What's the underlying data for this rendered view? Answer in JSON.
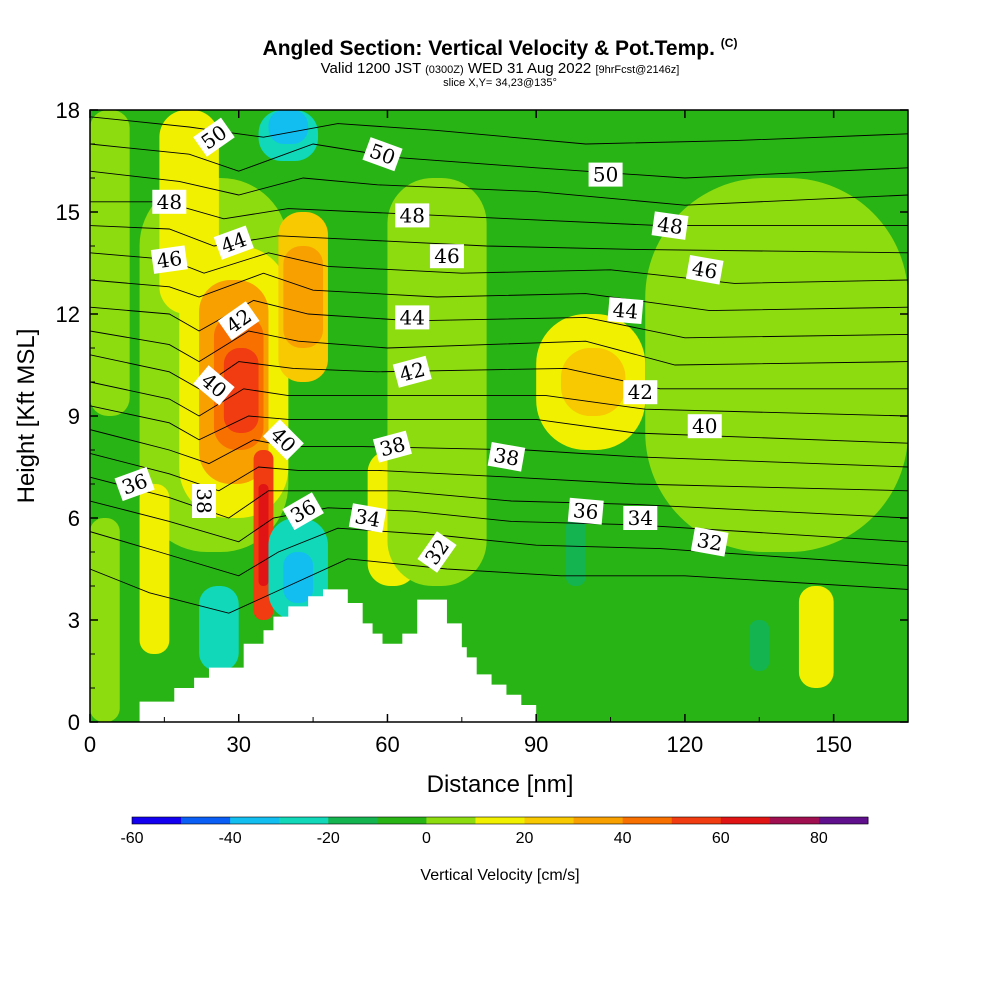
{
  "header": {
    "title": "Angled Section: Vertical Velocity & Pot.Temp.",
    "copyright": "(C)",
    "valid_a": "Valid 1200 JST",
    "valid_utc": "(0300Z)",
    "valid_b": "WED 31 Aug 2022",
    "forecast": "[9hrFcst@2146z]",
    "slice": "slice X,Y= 34,23@135°"
  },
  "chart_data": {
    "type": "contour-section",
    "title": "Angled Section: Vertical Velocity & Pot.Temp.",
    "xlabel": "Distance [nm]",
    "ylabel": "Height [Kft MSL]",
    "xlim": [
      0,
      165
    ],
    "ylim": [
      0,
      18
    ],
    "xticks": [
      "0",
      "30",
      "60",
      "90",
      "120",
      "150"
    ],
    "xtick_values": [
      0,
      30,
      60,
      90,
      120,
      150
    ],
    "yticks": [
      "0",
      "3",
      "6",
      "9",
      "12",
      "15",
      "18"
    ],
    "ytick_values": [
      0,
      3,
      6,
      9,
      12,
      15,
      18
    ],
    "terrain": [
      [
        10,
        0.6
      ],
      [
        16,
        0.6
      ],
      [
        17,
        1
      ],
      [
        20,
        1
      ],
      [
        21,
        1.3
      ],
      [
        23,
        1.3
      ],
      [
        24,
        1.6
      ],
      [
        30,
        1.6
      ],
      [
        31,
        2.3
      ],
      [
        34,
        2.3
      ],
      [
        35,
        2.7
      ],
      [
        36,
        2.7
      ],
      [
        37,
        3.1
      ],
      [
        39,
        3.1
      ],
      [
        40,
        3.4
      ],
      [
        43,
        3.4
      ],
      [
        44,
        3.7
      ],
      [
        46,
        3.7
      ],
      [
        47,
        3.9
      ],
      [
        51,
        3.9
      ],
      [
        52,
        3.5
      ],
      [
        54,
        3.5
      ],
      [
        55,
        2.9
      ],
      [
        56,
        2.9
      ],
      [
        57,
        2.6
      ],
      [
        58,
        2.6
      ],
      [
        59,
        2.3
      ],
      [
        62,
        2.3
      ],
      [
        63,
        2.6
      ],
      [
        65,
        2.6
      ],
      [
        66,
        3.6
      ],
      [
        71,
        3.6
      ],
      [
        72,
        2.9
      ],
      [
        74,
        2.9
      ],
      [
        75,
        2.2
      ],
      [
        76,
        1.9
      ],
      [
        77,
        1.9
      ],
      [
        78,
        1.4
      ],
      [
        80,
        1.4
      ],
      [
        81,
        1.1
      ],
      [
        83,
        1.1
      ],
      [
        84,
        0.8
      ],
      [
        86,
        0.8
      ],
      [
        87,
        0.5
      ],
      [
        89,
        0.5
      ],
      [
        90,
        0.3
      ]
    ],
    "velocity_cells": [
      {
        "x": [
          0,
          165
        ],
        "y": [
          0,
          18
        ],
        "level": "0"
      },
      {
        "x": [
          0,
          8
        ],
        "y": [
          9,
          18
        ],
        "level": "10"
      },
      {
        "x": [
          0,
          6
        ],
        "y": [
          0,
          6
        ],
        "level": "10"
      },
      {
        "x": [
          10,
          40
        ],
        "y": [
          5,
          16
        ],
        "level": "10"
      },
      {
        "x": [
          14,
          26
        ],
        "y": [
          12,
          18
        ],
        "level": "20"
      },
      {
        "x": [
          18,
          40
        ],
        "y": [
          6,
          14
        ],
        "level": "20"
      },
      {
        "x": [
          22,
          36
        ],
        "y": [
          7,
          13
        ],
        "level": "40"
      },
      {
        "x": [
          25,
          35
        ],
        "y": [
          8,
          12
        ],
        "level": "50"
      },
      {
        "x": [
          27,
          34
        ],
        "y": [
          8.5,
          11
        ],
        "level": "60"
      },
      {
        "x": [
          33,
          37
        ],
        "y": [
          3,
          8
        ],
        "level": "60"
      },
      {
        "x": [
          34,
          36
        ],
        "y": [
          4,
          7
        ],
        "level": "70"
      },
      {
        "x": [
          38,
          48
        ],
        "y": [
          10,
          15
        ],
        "level": "30"
      },
      {
        "x": [
          39,
          47
        ],
        "y": [
          11,
          14
        ],
        "level": "40"
      },
      {
        "x": [
          10,
          16
        ],
        "y": [
          2,
          7
        ],
        "level": "20"
      },
      {
        "x": [
          22,
          30
        ],
        "y": [
          1.5,
          4
        ],
        "level": "-20"
      },
      {
        "x": [
          36,
          48
        ],
        "y": [
          3,
          6
        ],
        "level": "-20"
      },
      {
        "x": [
          39,
          45
        ],
        "y": [
          3.5,
          5
        ],
        "level": "-30"
      },
      {
        "x": [
          34,
          46
        ],
        "y": [
          16.5,
          18
        ],
        "level": "-20"
      },
      {
        "x": [
          36,
          44
        ],
        "y": [
          17,
          18
        ],
        "level": "-30"
      },
      {
        "x": [
          56,
          66
        ],
        "y": [
          4,
          8
        ],
        "level": "20"
      },
      {
        "x": [
          90,
          112
        ],
        "y": [
          8,
          12
        ],
        "level": "20"
      },
      {
        "x": [
          95,
          108
        ],
        "y": [
          9,
          11
        ],
        "level": "30"
      },
      {
        "x": [
          143,
          150
        ],
        "y": [
          1,
          4
        ],
        "level": "20"
      },
      {
        "x": [
          96,
          100
        ],
        "y": [
          4,
          6
        ],
        "level": "-10"
      },
      {
        "x": [
          133,
          137
        ],
        "y": [
          1.5,
          3
        ],
        "level": "-10"
      },
      {
        "x": [
          112,
          165
        ],
        "y": [
          5,
          16
        ],
        "level": "10"
      },
      {
        "x": [
          60,
          80
        ],
        "y": [
          4,
          16
        ],
        "level": "10"
      }
    ],
    "theta_contour_labels": [
      {
        "value": "50",
        "x": 25,
        "y": 17.2,
        "rotate": -35
      },
      {
        "value": "50",
        "x": 59,
        "y": 16.7,
        "rotate": 20
      },
      {
        "value": "50",
        "x": 104,
        "y": 16.1,
        "rotate": 0
      },
      {
        "value": "48",
        "x": 16,
        "y": 15.3,
        "rotate": 0
      },
      {
        "value": "48",
        "x": 65,
        "y": 14.9,
        "rotate": 0
      },
      {
        "value": "48",
        "x": 117,
        "y": 14.6,
        "rotate": 8
      },
      {
        "value": "46",
        "x": 16,
        "y": 13.6,
        "rotate": -8
      },
      {
        "value": "46",
        "x": 72,
        "y": 13.7,
        "rotate": 0
      },
      {
        "value": "46",
        "x": 124,
        "y": 13.3,
        "rotate": 10
      },
      {
        "value": "44",
        "x": 29,
        "y": 14.1,
        "rotate": -20
      },
      {
        "value": "44",
        "x": 65,
        "y": 11.9,
        "rotate": 0
      },
      {
        "value": "44",
        "x": 108,
        "y": 12.1,
        "rotate": 5
      },
      {
        "value": "42",
        "x": 30,
        "y": 11.8,
        "rotate": -35
      },
      {
        "value": "42",
        "x": 65,
        "y": 10.3,
        "rotate": -15
      },
      {
        "value": "42",
        "x": 111,
        "y": 9.7,
        "rotate": 0
      },
      {
        "value": "40",
        "x": 25,
        "y": 9.9,
        "rotate": 40
      },
      {
        "value": "40",
        "x": 39,
        "y": 8.3,
        "rotate": 45
      },
      {
        "value": "40",
        "x": 124,
        "y": 8.7,
        "rotate": 0
      },
      {
        "value": "38",
        "x": 61,
        "y": 8.1,
        "rotate": -15
      },
      {
        "value": "38",
        "x": 84,
        "y": 7.8,
        "rotate": 10
      },
      {
        "value": "38",
        "x": 23,
        "y": 6.5,
        "rotate": 90
      },
      {
        "value": "36",
        "x": 9,
        "y": 7.0,
        "rotate": -20
      },
      {
        "value": "36",
        "x": 43,
        "y": 6.2,
        "rotate": -30
      },
      {
        "value": "36",
        "x": 100,
        "y": 6.2,
        "rotate": 5
      },
      {
        "value": "34",
        "x": 56,
        "y": 6.0,
        "rotate": 10
      },
      {
        "value": "34",
        "x": 111,
        "y": 6.0,
        "rotate": 0
      },
      {
        "value": "32",
        "x": 70,
        "y": 5.0,
        "rotate": -55
      },
      {
        "value": "32",
        "x": 125,
        "y": 5.3,
        "rotate": 10
      }
    ],
    "theta_lines": [
      [
        [
          0,
          17.8
        ],
        [
          20,
          17.5
        ],
        [
          35,
          17.2
        ],
        [
          50,
          17.6
        ],
        [
          70,
          17.4
        ],
        [
          100,
          17.0
        ],
        [
          130,
          17.1
        ],
        [
          165,
          17.3
        ]
      ],
      [
        [
          0,
          17.0
        ],
        [
          20,
          16.7
        ],
        [
          30,
          16.2
        ],
        [
          45,
          17.0
        ],
        [
          62,
          16.6
        ],
        [
          90,
          16.3
        ],
        [
          120,
          16.0
        ],
        [
          165,
          16.3
        ]
      ],
      [
        [
          0,
          16.2
        ],
        [
          18,
          15.9
        ],
        [
          30,
          15.5
        ],
        [
          43,
          16.0
        ],
        [
          58,
          15.8
        ],
        [
          90,
          15.6
        ],
        [
          120,
          15.2
        ],
        [
          165,
          15.5
        ]
      ],
      [
        [
          0,
          15.3
        ],
        [
          15,
          15.3
        ],
        [
          27,
          14.8
        ],
        [
          40,
          15.1
        ],
        [
          55,
          15.0
        ],
        [
          85,
          14.8
        ],
        [
          115,
          14.6
        ],
        [
          165,
          14.6
        ]
      ],
      [
        [
          0,
          14.6
        ],
        [
          16,
          14.5
        ],
        [
          25,
          14.0
        ],
        [
          38,
          14.3
        ],
        [
          52,
          14.2
        ],
        [
          80,
          14.0
        ],
        [
          110,
          13.9
        ],
        [
          165,
          13.8
        ]
      ],
      [
        [
          0,
          13.8
        ],
        [
          16,
          13.6
        ],
        [
          23,
          13.2
        ],
        [
          36,
          13.8
        ],
        [
          48,
          13.4
        ],
        [
          75,
          13.2
        ],
        [
          105,
          13.3
        ],
        [
          130,
          12.9
        ],
        [
          165,
          13.0
        ]
      ],
      [
        [
          0,
          13.0
        ],
        [
          16,
          12.8
        ],
        [
          22,
          12.5
        ],
        [
          35,
          13.2
        ],
        [
          45,
          12.7
        ],
        [
          70,
          12.5
        ],
        [
          100,
          12.6
        ],
        [
          125,
          12.1
        ],
        [
          165,
          12.2
        ]
      ],
      [
        [
          0,
          12.2
        ],
        [
          16,
          12.0
        ],
        [
          22,
          11.5
        ],
        [
          33,
          12.4
        ],
        [
          44,
          12.0
        ],
        [
          65,
          11.8
        ],
        [
          100,
          11.9
        ],
        [
          120,
          11.3
        ],
        [
          165,
          11.4
        ]
      ],
      [
        [
          0,
          11.5
        ],
        [
          16,
          11.1
        ],
        [
          22,
          10.6
        ],
        [
          32,
          11.5
        ],
        [
          42,
          11.2
        ],
        [
          60,
          11.0
        ],
        [
          100,
          11.2
        ],
        [
          118,
          10.5
        ],
        [
          165,
          10.6
        ]
      ],
      [
        [
          0,
          10.8
        ],
        [
          16,
          10.3
        ],
        [
          22,
          9.8
        ],
        [
          30,
          10.6
        ],
        [
          41,
          10.4
        ],
        [
          58,
          10.3
        ],
        [
          96,
          10.4
        ],
        [
          115,
          9.8
        ],
        [
          165,
          9.8
        ]
      ],
      [
        [
          0,
          10.0
        ],
        [
          16,
          9.5
        ],
        [
          22,
          9.0
        ],
        [
          31,
          9.8
        ],
        [
          40,
          9.6
        ],
        [
          55,
          9.6
        ],
        [
          92,
          9.6
        ],
        [
          112,
          9.2
        ],
        [
          165,
          9.0
        ]
      ],
      [
        [
          0,
          9.3
        ],
        [
          16,
          8.8
        ],
        [
          22,
          8.3
        ],
        [
          32,
          9.0
        ],
        [
          40,
          8.9
        ],
        [
          55,
          8.9
        ],
        [
          90,
          8.9
        ],
        [
          110,
          8.5
        ],
        [
          165,
          8.2
        ]
      ],
      [
        [
          0,
          8.6
        ],
        [
          16,
          8.0
        ],
        [
          24,
          7.6
        ],
        [
          33,
          8.3
        ],
        [
          40,
          8.1
        ],
        [
          55,
          8.1
        ],
        [
          88,
          8.0
        ],
        [
          110,
          7.8
        ],
        [
          165,
          7.5
        ]
      ],
      [
        [
          0,
          7.9
        ],
        [
          16,
          7.3
        ],
        [
          26,
          6.8
        ],
        [
          34,
          7.5
        ],
        [
          42,
          7.4
        ],
        [
          58,
          7.4
        ],
        [
          85,
          7.2
        ],
        [
          110,
          7.0
        ],
        [
          165,
          6.8
        ]
      ],
      [
        [
          0,
          7.2
        ],
        [
          16,
          6.6
        ],
        [
          28,
          6.0
        ],
        [
          36,
          6.8
        ],
        [
          45,
          6.8
        ],
        [
          62,
          6.8
        ],
        [
          85,
          6.5
        ],
        [
          110,
          6.4
        ],
        [
          165,
          6.0
        ]
      ],
      [
        [
          0,
          6.5
        ],
        [
          16,
          5.9
        ],
        [
          30,
          5.3
        ],
        [
          37,
          6.0
        ],
        [
          48,
          6.3
        ],
        [
          65,
          6.2
        ],
        [
          85,
          5.9
        ],
        [
          110,
          5.8
        ],
        [
          165,
          5.3
        ]
      ],
      [
        [
          0,
          5.6
        ],
        [
          14,
          5.0
        ],
        [
          30,
          4.3
        ],
        [
          38,
          5.0
        ],
        [
          50,
          5.7
        ],
        [
          70,
          5.5
        ],
        [
          90,
          5.2
        ],
        [
          115,
          5.1
        ],
        [
          165,
          4.6
        ]
      ],
      [
        [
          0,
          4.5
        ],
        [
          12,
          3.8
        ],
        [
          28,
          3.2
        ],
        [
          40,
          4.0
        ],
        [
          52,
          4.8
        ],
        [
          72,
          4.5
        ],
        [
          95,
          4.3
        ],
        [
          120,
          4.3
        ],
        [
          165,
          3.9
        ]
      ]
    ],
    "colorbar": {
      "label": "Vertical Velocity [cm/s]",
      "ticks": [
        "-60",
        "-40",
        "-20",
        "0",
        "20",
        "40",
        "60",
        "80"
      ],
      "range": [
        -60,
        90
      ],
      "step": 10,
      "colors": [
        "#1400f0",
        "#0a5ef5",
        "#12bef0",
        "#10d8b8",
        "#14b450",
        "#28b414",
        "#8cdc10",
        "#f0f000",
        "#f8c800",
        "#f8a000",
        "#f87000",
        "#f03c10",
        "#e01414",
        "#a01050",
        "#60108c"
      ]
    },
    "level_colors": {
      "-30": "#12bef0",
      "-20": "#10d8b8",
      "-10": "#14b450",
      "0": "#28b414",
      "10": "#8cdc10",
      "20": "#f0f000",
      "30": "#f8c800",
      "40": "#f8a000",
      "50": "#f87000",
      "60": "#f03c10",
      "70": "#e01414"
    }
  }
}
